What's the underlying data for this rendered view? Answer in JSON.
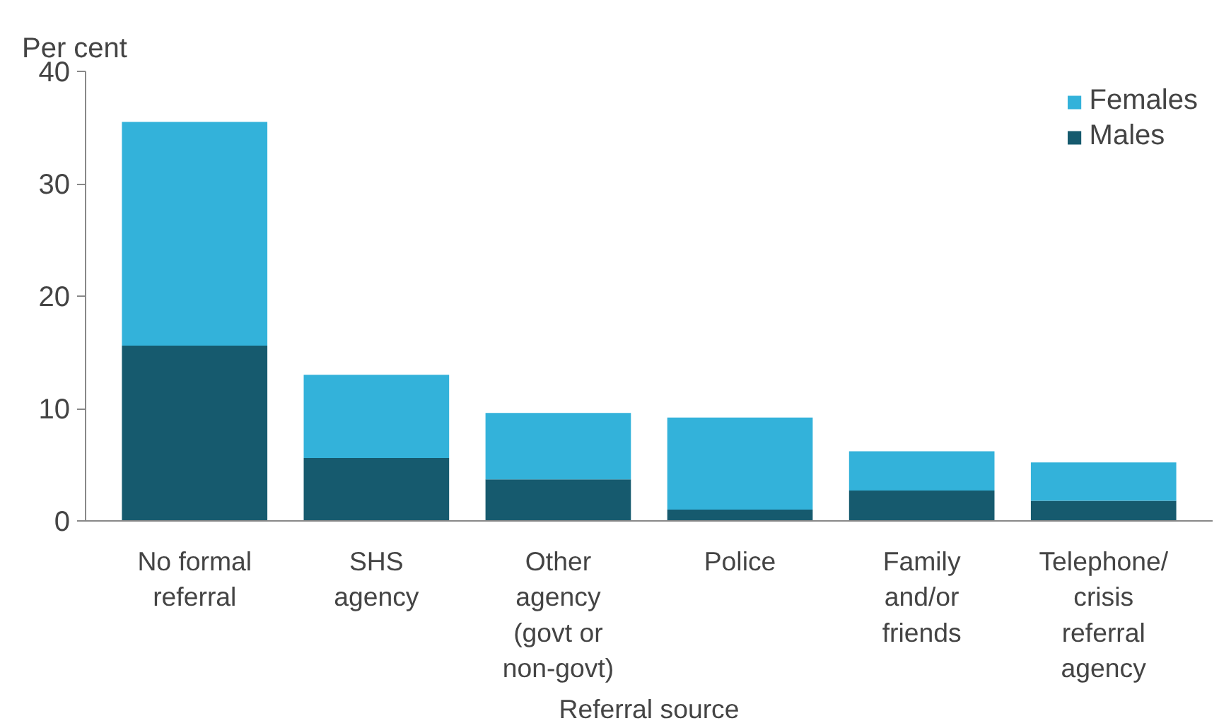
{
  "chart_data": {
    "type": "bar",
    "stacked": true,
    "ylabel": "Per cent",
    "xlabel": "Referral source",
    "categories": [
      "No formal\nreferral",
      "SHS\nagency",
      "Other\nagency\n(govt or\nnon-govt)",
      "Police",
      "Family\nand/or\nfriends",
      "Telephone/\ncrisis\nreferral\nagency"
    ],
    "series": [
      {
        "name": "Males",
        "color": "#165a6e",
        "values": [
          15.6,
          5.6,
          3.7,
          1.0,
          2.7,
          1.8
        ]
      },
      {
        "name": "Females",
        "color": "#33b2da",
        "values": [
          19.9,
          7.4,
          5.9,
          8.2,
          3.5,
          3.4
        ]
      }
    ],
    "ylim": [
      0,
      40
    ],
    "yticks": [
      0,
      10,
      20,
      30,
      40
    ],
    "grid": false,
    "legend": "top right"
  }
}
